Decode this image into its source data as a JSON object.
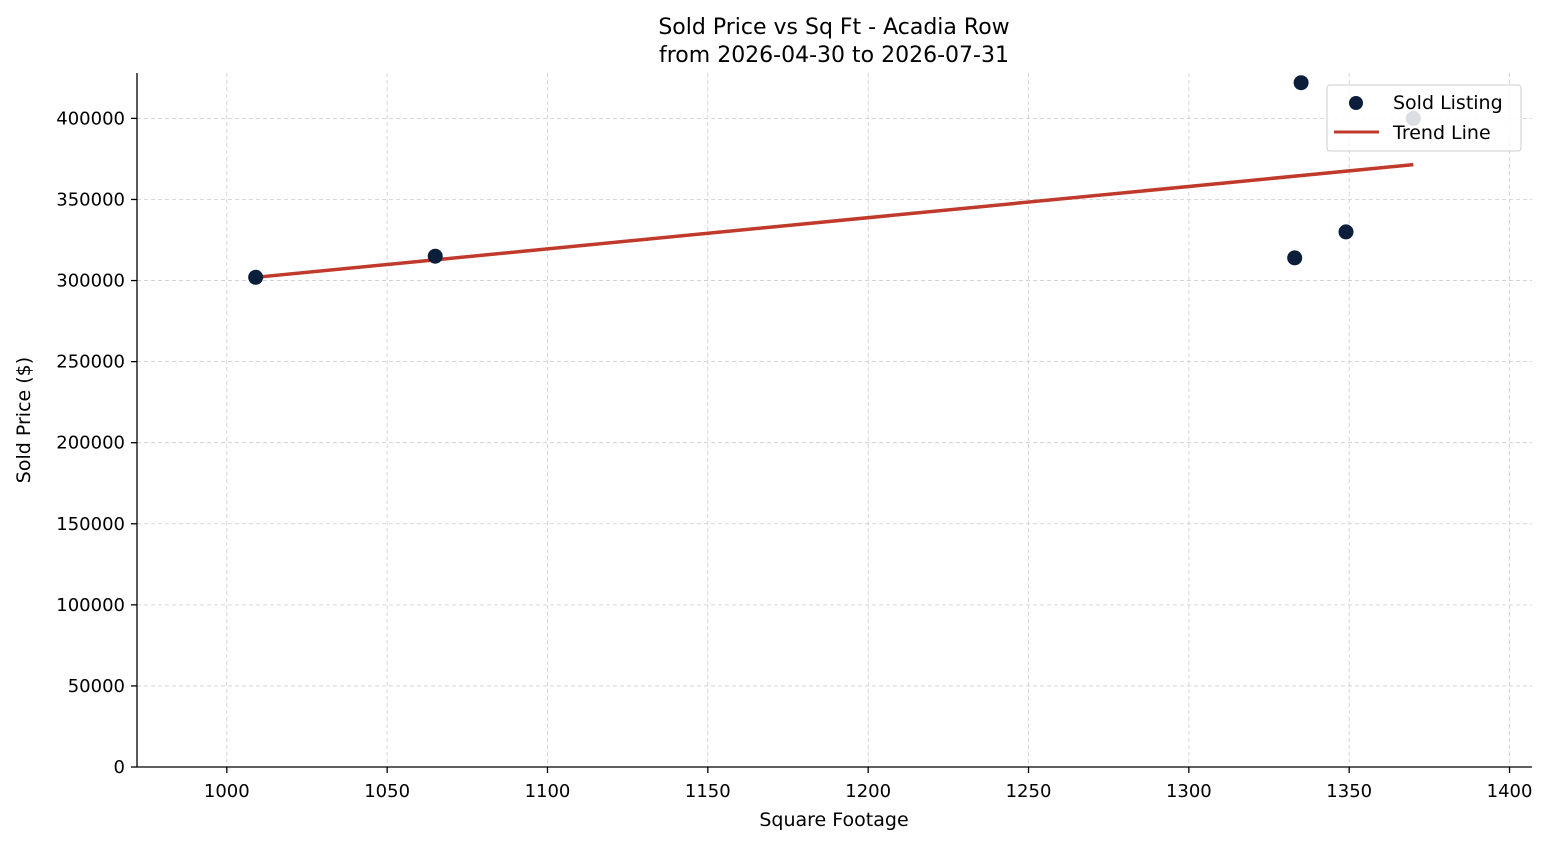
{
  "chart_data": {
    "type": "scatter",
    "title": "Sold Price vs Sq Ft - Acadia Row",
    "subtitle": "from 2026-04-30 to 2026-07-31",
    "xlabel": "Square Footage",
    "ylabel": "Sold Price ($)",
    "xlim": [
      972,
      1407
    ],
    "ylim": [
      0,
      428000
    ],
    "xticks": [
      1000,
      1050,
      1100,
      1150,
      1200,
      1250,
      1300,
      1350,
      1400
    ],
    "yticks": [
      0,
      50000,
      100000,
      150000,
      200000,
      250000,
      300000,
      350000,
      400000
    ],
    "grid": true,
    "legend_position": "top-right",
    "series": [
      {
        "name": "Sold Listing",
        "kind": "scatter",
        "color": "#0b1f3a",
        "points": [
          {
            "x": 1009,
            "y": 302000
          },
          {
            "x": 1065,
            "y": 315000
          },
          {
            "x": 1333,
            "y": 314000
          },
          {
            "x": 1335,
            "y": 422000
          },
          {
            "x": 1349,
            "y": 330000
          },
          {
            "x": 1370,
            "y": 400000
          }
        ]
      },
      {
        "name": "Trend Line",
        "kind": "line",
        "color": "#c0392b",
        "points": [
          {
            "x": 1009,
            "y": 302000
          },
          {
            "x": 1370,
            "y": 371500
          }
        ]
      }
    ]
  }
}
